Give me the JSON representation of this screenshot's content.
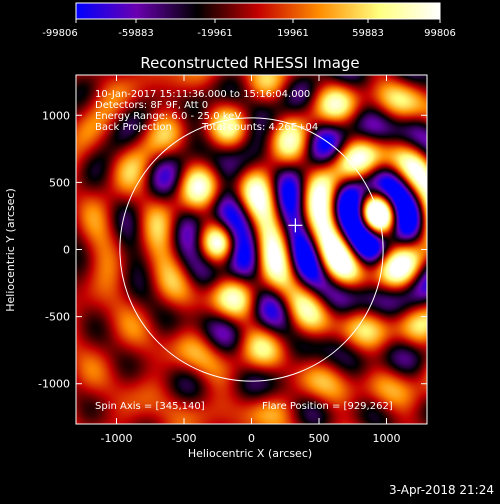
{
  "colorbar": {
    "ticks": [
      "-99806",
      "-59883",
      "-19961",
      "19961",
      "59883",
      "99806"
    ]
  },
  "chart_data": {
    "type": "heatmap",
    "title": "Reconstructed RHESSI Image",
    "xlabel": "Heliocentric X (arcsec)",
    "ylabel": "Heliocentric Y (arcsec)",
    "xlim": [
      -1300,
      1300
    ],
    "ylim": [
      -1300,
      1300
    ],
    "xticks": [
      -1000,
      -500,
      0,
      500,
      1000
    ],
    "yticks": [
      -1000,
      -500,
      0,
      500,
      1000
    ],
    "colorscale": {
      "min": -99806,
      "max": 99806,
      "colors": [
        "#0000ff",
        "#6a00b0",
        "#000000",
        "#c40000",
        "#ff8c00",
        "#ffff80",
        "#ffffff"
      ]
    },
    "solar_limb": {
      "center": [
        0,
        0
      ],
      "radius_arcsec": 975
    },
    "annotations": {
      "line1": "10-Jan-2017 15:11:36.000 to 15:16:04.000",
      "line2": "Detectors: 8F 9F, Att 0",
      "line3": "Energy Range: 6.0 - 25.0 keV",
      "line4a": "Back Projection",
      "line4b": "Total counts: 4.26E+04",
      "spin_axis": "Spin Axis = [345,140]",
      "flare_position": "Flare Position = [929,262]"
    },
    "flare_position": [
      929,
      262
    ],
    "spin_axis": [
      345,
      140
    ],
    "sources": [
      {
        "x": 929,
        "y": 262,
        "amplitude": 99806
      },
      {
        "x": -230,
        "y": 50,
        "amplitude": 60000
      }
    ]
  },
  "footer": {
    "date": "3-Apr-2018 21:24"
  }
}
